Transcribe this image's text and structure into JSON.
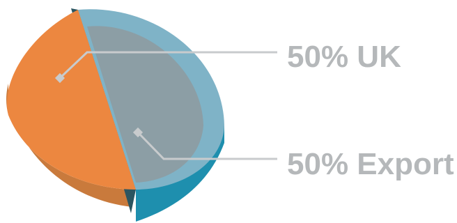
{
  "chart_data": {
    "type": "pie",
    "title": "",
    "slices": [
      {
        "label": "UK",
        "value": 50,
        "display": "50% UK",
        "color": "#ec8740"
      },
      {
        "label": "Export",
        "value": 50,
        "display": "50% Export",
        "color": "#8c9ea5"
      }
    ],
    "rim_color": "#7fb3c7",
    "legend": "callout-right"
  }
}
